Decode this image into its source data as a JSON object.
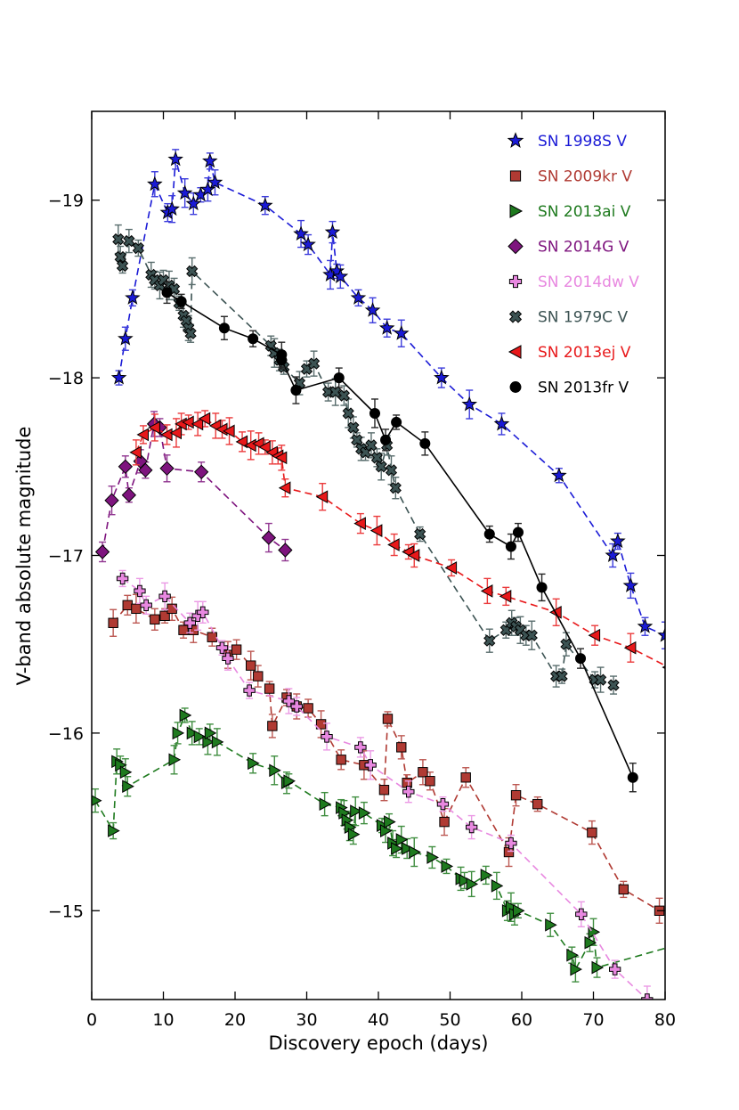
{
  "chart_data": {
    "type": "line",
    "title": "",
    "xlabel": "Discovery epoch (days)",
    "ylabel": "V-band absolute magnitude",
    "xlim": [
      0,
      80
    ],
    "ylim": [
      -14.5,
      -19.5
    ],
    "xticks": [
      0,
      10,
      20,
      30,
      40,
      50,
      60,
      70,
      80
    ],
    "yticks": [
      -15,
      -16,
      -17,
      -18,
      -19
    ],
    "xtick_labels": [
      "0",
      "10",
      "20",
      "30",
      "40",
      "50",
      "60",
      "70",
      "80"
    ],
    "ytick_labels": [
      "−15",
      "−16",
      "−17",
      "−18",
      "−19"
    ],
    "legend_position": "top-right",
    "series": [
      {
        "name": "SN 1998S V",
        "color": "#1a1ad6",
        "marker": "star",
        "line": "dashed",
        "x": [
          3.8,
          4.7,
          5.7,
          8.8,
          10.6,
          11.2,
          11.7,
          13.0,
          14.2,
          15.2,
          16.2,
          16.5,
          17.2,
          24.2,
          29.2,
          30.2,
          33.3,
          33.6,
          34.2,
          34.7,
          37.2,
          39.2,
          41.2,
          43.2,
          48.8,
          52.7,
          57.2,
          65.2,
          72.7,
          73.4,
          75.2,
          77.2,
          80.0
        ],
        "y": [
          -18.0,
          -18.22,
          -18.45,
          -19.09,
          -18.93,
          -18.95,
          -19.23,
          -19.04,
          -18.98,
          -19.03,
          -19.06,
          -19.22,
          -19.1,
          -18.97,
          -18.81,
          -18.75,
          -18.58,
          -18.82,
          -18.6,
          -18.57,
          -18.45,
          -18.38,
          -18.28,
          -18.25,
          -18.0,
          -17.85,
          -17.74,
          -17.45,
          -17.0,
          -17.08,
          -16.83,
          -16.6,
          -16.55
        ]
      },
      {
        "name": "SN 2009kr V",
        "color": "#b03a33",
        "marker": "square",
        "line": "dashed",
        "x": [
          3.0,
          5.0,
          6.2,
          8.8,
          10.2,
          11.2,
          12.8,
          14.2,
          16.8,
          19.0,
          20.2,
          22.2,
          23.2,
          24.8,
          25.2,
          27.2,
          28.6,
          30.2,
          32.0,
          34.8,
          38.0,
          40.8,
          41.3,
          43.2,
          44.0,
          46.2,
          47.2,
          49.2,
          52.2,
          58.2,
          59.2,
          62.2,
          69.8,
          74.2,
          79.2,
          80.8
        ],
        "y": [
          -16.62,
          -16.72,
          -16.7,
          -16.64,
          -16.66,
          -16.7,
          -16.58,
          -16.58,
          -16.54,
          -16.44,
          -16.47,
          -16.38,
          -16.32,
          -16.25,
          -16.04,
          -16.2,
          -16.15,
          -16.14,
          -16.05,
          -15.85,
          -15.82,
          -15.68,
          -16.08,
          -15.92,
          -15.72,
          -15.78,
          -15.73,
          -15.5,
          -15.75,
          -15.33,
          -15.65,
          -15.6,
          -15.44,
          -15.12,
          -15.0,
          -14.95
        ]
      },
      {
        "name": "SN 2013ai V",
        "color": "#1e7a1e",
        "marker": "triangle-right",
        "line": "dashed",
        "x": [
          0.5,
          3.0,
          3.5,
          4.0,
          4.7,
          5.0,
          11.5,
          12.0,
          13.0,
          14.0,
          15.0,
          16.2,
          16.5,
          17.5,
          22.5,
          25.5,
          27.2,
          27.5,
          32.5,
          34.8,
          35.2,
          35.6,
          36.0,
          36.5,
          36.8,
          38.0,
          40.5,
          41.0,
          41.5,
          42.0,
          42.5,
          43.2,
          44.0,
          45.0,
          47.5,
          49.5,
          51.5,
          52.0,
          53.0,
          55.0,
          56.5,
          58.0,
          58.5,
          59.0,
          59.5,
          64.0,
          67.0,
          67.5,
          69.5,
          70.0,
          70.5,
          81.0
        ],
        "y": [
          -15.62,
          -15.45,
          -15.84,
          -15.82,
          -15.78,
          -15.7,
          -15.85,
          -16.0,
          -16.1,
          -16.0,
          -15.98,
          -15.95,
          -16.0,
          -15.95,
          -15.83,
          -15.79,
          -15.72,
          -15.73,
          -15.6,
          -15.58,
          -15.55,
          -15.51,
          -15.47,
          -15.43,
          -15.56,
          -15.55,
          -15.48,
          -15.45,
          -15.5,
          -15.38,
          -15.35,
          -15.4,
          -15.35,
          -15.33,
          -15.3,
          -15.25,
          -15.18,
          -15.17,
          -15.15,
          -15.2,
          -15.14,
          -15.0,
          -15.02,
          -14.98,
          -15.0,
          -14.92,
          -14.75,
          -14.67,
          -14.82,
          -14.88,
          -14.68,
          -14.8
        ]
      },
      {
        "name": "SN 2014G V",
        "color": "#7e147e",
        "marker": "diamond",
        "line": "dashed",
        "x": [
          1.5,
          2.8,
          4.7,
          5.2,
          6.8,
          7.5,
          8.7,
          9.5,
          10.5,
          15.3,
          24.7,
          27.0
        ],
        "y": [
          -17.02,
          -17.31,
          -17.5,
          -17.34,
          -17.53,
          -17.48,
          -17.74,
          -17.72,
          -17.49,
          -17.47,
          -17.1,
          -17.03
        ]
      },
      {
        "name": "SN 2014dw V",
        "color": "#e888e0",
        "marker": "plus",
        "line": "dashed",
        "x": [
          4.3,
          6.7,
          7.6,
          10.2,
          13.7,
          14.8,
          15.5,
          18.2,
          19.0,
          22.0,
          27.5,
          28.6,
          32.8,
          37.5,
          38.9,
          44.2,
          49.0,
          53.0,
          58.5,
          68.3,
          73.0,
          77.5
        ],
        "y": [
          -16.87,
          -16.8,
          -16.72,
          -16.77,
          -16.62,
          -16.66,
          -16.68,
          -16.48,
          -16.42,
          -16.24,
          -16.18,
          -16.15,
          -15.98,
          -15.92,
          -15.82,
          -15.67,
          -15.6,
          -15.47,
          -15.38,
          -14.98,
          -14.67,
          -14.5
        ]
      },
      {
        "name": "SN 1979C V",
        "color": "#3c5353",
        "marker": "x",
        "line": "dashed",
        "x": [
          3.7,
          4.0,
          4.3,
          5.2,
          6.5,
          8.3,
          8.8,
          9.5,
          10.0,
          10.8,
          11.5,
          12.2,
          12.8,
          13.2,
          13.5,
          13.8,
          14.0,
          25.0,
          25.5,
          26.2,
          26.8,
          29.0,
          30.0,
          31.0,
          33.0,
          34.0,
          35.2,
          35.8,
          36.5,
          37.0,
          37.6,
          38.2,
          39.0,
          39.8,
          40.4,
          41.2,
          41.8,
          42.4,
          45.8,
          55.5,
          57.8,
          58.6,
          59.2,
          59.8,
          60.6,
          61.4,
          64.8,
          65.6,
          66.2,
          70.2,
          71.0,
          72.8
        ],
        "y": [
          -18.78,
          -18.68,
          -18.63,
          -18.77,
          -18.73,
          -18.58,
          -18.55,
          -18.52,
          -18.55,
          -18.52,
          -18.5,
          -18.42,
          -18.35,
          -18.32,
          -18.28,
          -18.25,
          -18.6,
          -18.18,
          -18.14,
          -18.1,
          -18.06,
          -17.97,
          -18.05,
          -18.08,
          -17.92,
          -17.92,
          -17.9,
          -17.8,
          -17.72,
          -17.65,
          -17.6,
          -17.58,
          -17.62,
          -17.55,
          -17.5,
          -17.62,
          -17.48,
          -17.38,
          -17.12,
          -16.52,
          -16.58,
          -16.62,
          -16.6,
          -16.58,
          -16.55,
          -16.55,
          -16.32,
          -16.32,
          -16.5,
          -16.3,
          -16.3,
          -16.27
        ]
      },
      {
        "name": "SN 2013ej V",
        "color": "#e8181a",
        "marker": "triangle-left",
        "line": "dashed",
        "x": [
          6.2,
          7.2,
          8.8,
          10.5,
          11.8,
          12.5,
          13.5,
          14.8,
          15.8,
          17.3,
          18.2,
          19.2,
          21.0,
          22.2,
          23.3,
          24.2,
          25.2,
          26.0,
          26.5,
          27.0,
          32.2,
          37.5,
          39.8,
          42.2,
          44.2,
          45.0,
          50.2,
          55.2,
          57.8,
          64.8,
          70.2,
          75.2,
          80.5
        ],
        "y": [
          -17.58,
          -17.68,
          -17.72,
          -17.68,
          -17.69,
          -17.74,
          -17.75,
          -17.74,
          -17.77,
          -17.73,
          -17.71,
          -17.7,
          -17.64,
          -17.62,
          -17.63,
          -17.61,
          -17.58,
          -17.56,
          -17.55,
          -17.38,
          -17.33,
          -17.18,
          -17.14,
          -17.06,
          -17.02,
          -17.0,
          -16.93,
          -16.8,
          -16.77,
          -16.68,
          -16.55,
          -16.48,
          -16.37
        ]
      },
      {
        "name": "SN 2013fr V",
        "color": "#000000",
        "marker": "circle",
        "line": "solid",
        "x": [
          10.5,
          12.5,
          18.5,
          22.5,
          26.5,
          26.5,
          28.5,
          34.5,
          39.5,
          41.0,
          42.5,
          46.5,
          55.5,
          58.5,
          59.5,
          62.8,
          68.2,
          75.5
        ],
        "y": [
          -18.48,
          -18.43,
          -18.28,
          -18.22,
          -18.13,
          -18.1,
          -17.93,
          -18.0,
          -17.8,
          -17.65,
          -17.75,
          -17.63,
          -17.12,
          -17.05,
          -17.13,
          -16.82,
          -16.42,
          -15.75
        ]
      }
    ]
  }
}
